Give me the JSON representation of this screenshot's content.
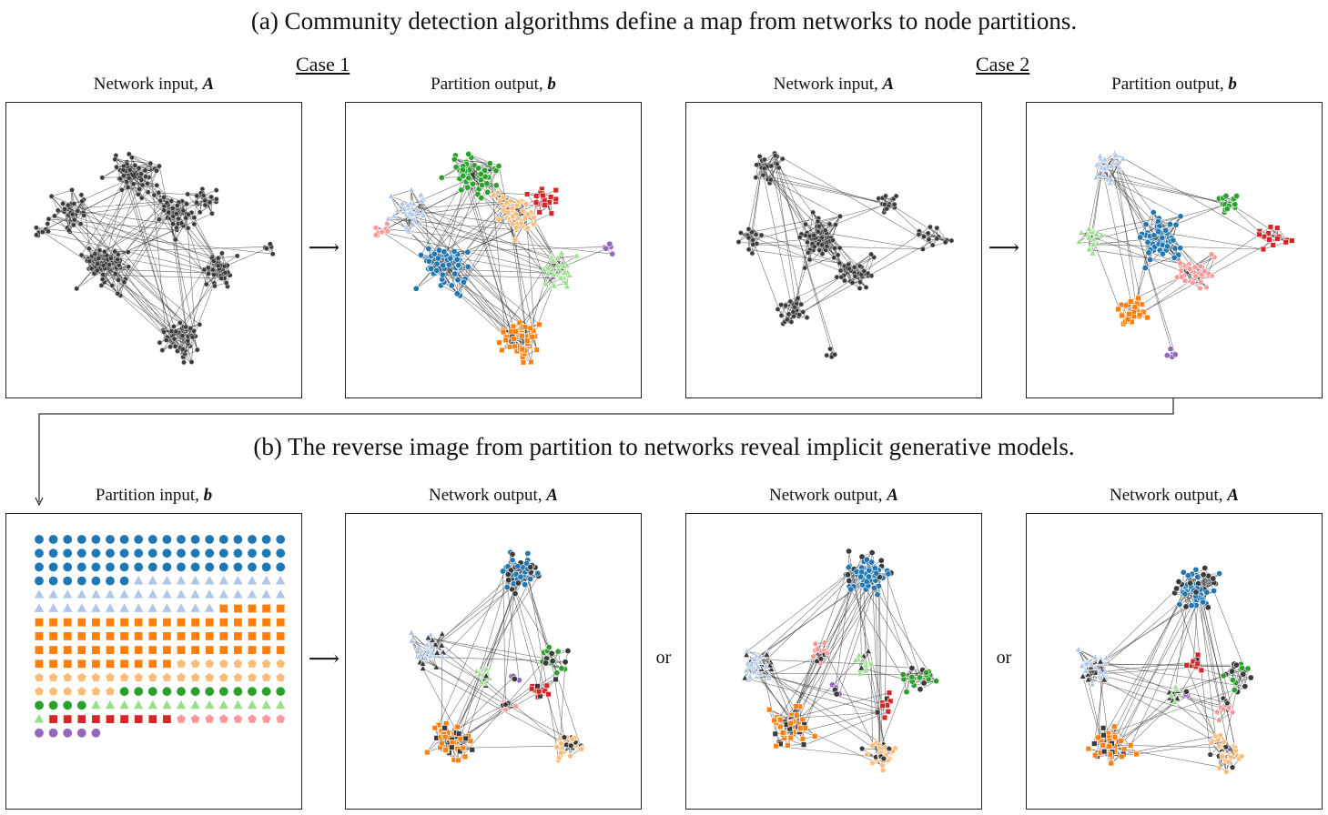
{
  "headings": {
    "a": "(a) Community detection algorithms define a map from networks to node partitions.",
    "b": "(b) The reverse image from partition to networks reveal implicit generative models."
  },
  "cases": {
    "case1": "Case 1",
    "case2": "Case 2"
  },
  "labels": {
    "network_input": "Network input,",
    "partition_output": "Partition output,",
    "partition_input": "Partition input,",
    "network_output": "Network output,",
    "sym_A": "A",
    "sym_b": "b"
  },
  "connectors": {
    "arrow": "⟶",
    "or": "or"
  },
  "colors": {
    "blue": "#1f77b4",
    "lightblue": "#aec7e8",
    "orange": "#ff7f0e",
    "peach": "#ffbb78",
    "green": "#2ca02c",
    "lightgreen": "#98df8a",
    "red": "#d62728",
    "pink": "#ff9896",
    "purple": "#9467bd",
    "dark": "#3a3a3a",
    "edge": "#333333"
  },
  "partition_grid": [
    {
      "color": "blue",
      "shape": "circle",
      "count": 61
    },
    {
      "color": "lightblue",
      "shape": "triangle",
      "count": 42
    },
    {
      "color": "orange",
      "shape": "square",
      "count": 69
    },
    {
      "color": "peach",
      "shape": "pentagon",
      "count": 32
    },
    {
      "color": "green",
      "shape": "circle",
      "count": 16
    },
    {
      "color": "lightgreen",
      "shape": "triangle",
      "count": 15
    },
    {
      "color": "red",
      "shape": "square",
      "count": 9
    },
    {
      "color": "pink",
      "shape": "pentagon",
      "count": 8
    },
    {
      "color": "purple",
      "shape": "circle",
      "count": 5
    }
  ]
}
